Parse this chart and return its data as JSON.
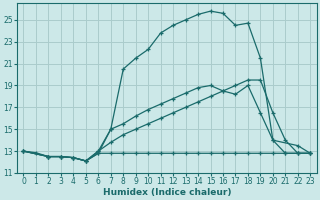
{
  "xlabel": "Humidex (Indice chaleur)",
  "bg_color": "#cce8e8",
  "grid_color": "#aacccc",
  "line_color": "#1a6b6b",
  "xlim": [
    -0.5,
    23.5
  ],
  "ylim": [
    11,
    26.5
  ],
  "yticks": [
    11,
    13,
    15,
    17,
    19,
    21,
    23,
    25
  ],
  "xticks": [
    0,
    1,
    2,
    3,
    4,
    5,
    6,
    7,
    8,
    9,
    10,
    11,
    12,
    13,
    14,
    15,
    16,
    17,
    18,
    19,
    20,
    21,
    22,
    23
  ],
  "s1_x": [
    0,
    1,
    2,
    3,
    4,
    5,
    6,
    7,
    8,
    9,
    10,
    11,
    12,
    13,
    14,
    15,
    16,
    17,
    18,
    19,
    20,
    21,
    22,
    23
  ],
  "s1_y": [
    13.0,
    12.85,
    12.5,
    12.5,
    12.4,
    12.1,
    12.8,
    12.8,
    12.8,
    12.8,
    12.8,
    12.8,
    12.8,
    12.8,
    12.8,
    12.8,
    12.8,
    12.8,
    12.8,
    12.8,
    12.8,
    12.8,
    12.8,
    12.8
  ],
  "s2_x": [
    0,
    2,
    3,
    4,
    5,
    6,
    7,
    8,
    9,
    10,
    11,
    12,
    13,
    14,
    15,
    16,
    17,
    18,
    19,
    20,
    21,
    22,
    23
  ],
  "s2_y": [
    13.0,
    12.5,
    12.5,
    12.4,
    12.1,
    12.8,
    15.0,
    15.5,
    16.2,
    16.8,
    17.3,
    17.8,
    18.3,
    18.8,
    19.0,
    18.5,
    18.2,
    19.0,
    16.5,
    14.0,
    12.8,
    12.8,
    12.8
  ],
  "s3_x": [
    0,
    2,
    3,
    4,
    5,
    6,
    7,
    8,
    9,
    10,
    11,
    12,
    13,
    14,
    15,
    16,
    17,
    18,
    19,
    20,
    21,
    22,
    23
  ],
  "s3_y": [
    13.0,
    12.5,
    12.5,
    12.4,
    12.1,
    13.0,
    13.8,
    14.5,
    15.0,
    15.5,
    16.0,
    16.5,
    17.0,
    17.5,
    18.0,
    18.5,
    19.0,
    19.5,
    19.5,
    16.5,
    14.0,
    12.8,
    12.8
  ],
  "s4_x": [
    0,
    2,
    3,
    4,
    5,
    6,
    7,
    8,
    9,
    10,
    11,
    12,
    13,
    14,
    15,
    16,
    17,
    18,
    19,
    20,
    22,
    23
  ],
  "s4_y": [
    13.0,
    12.5,
    12.5,
    12.4,
    12.1,
    13.0,
    15.0,
    20.5,
    21.5,
    22.3,
    23.8,
    24.5,
    25.0,
    25.5,
    25.8,
    25.6,
    24.5,
    24.7,
    21.5,
    14.0,
    13.5,
    12.8
  ]
}
